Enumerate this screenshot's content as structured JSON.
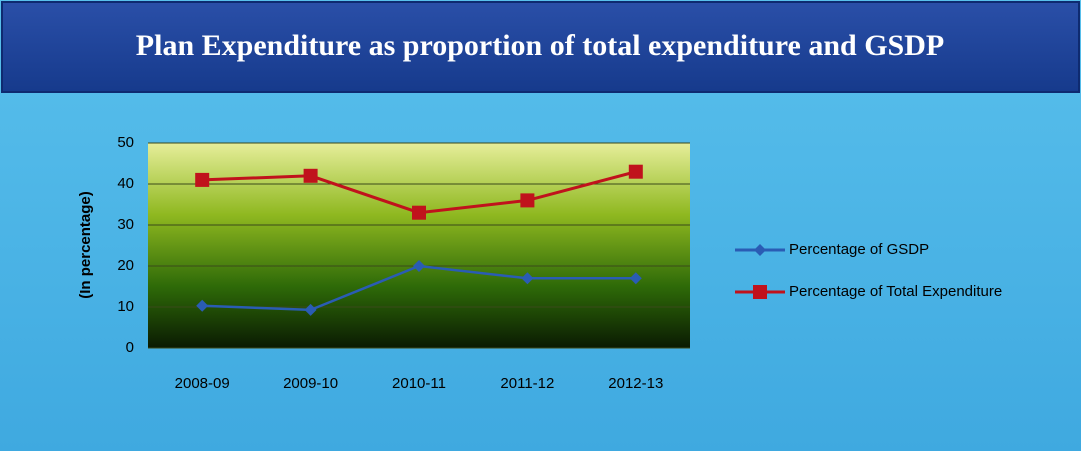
{
  "chart_data": {
    "type": "line",
    "title": "Plan Expenditure as proportion of total expenditure and GSDP",
    "y_label": "(In percentage)",
    "categories": [
      "2008-09",
      "2009-10",
      "2010-11",
      "2011-12",
      "2012-13"
    ],
    "series": [
      {
        "name": "Percentage of GSDP",
        "color": "#2a5cb4",
        "marker": "diamond",
        "values": [
          10.3,
          9.3,
          20,
          17,
          17
        ]
      },
      {
        "name": "Percentage of Total Expenditure",
        "color": "#c0121c",
        "marker": "square",
        "values": [
          41,
          42,
          33,
          36,
          43
        ]
      }
    ],
    "ylim": [
      0,
      50
    ],
    "yticks": [
      0,
      10,
      20,
      30,
      40,
      50
    ],
    "grid": true,
    "legend": "right"
  }
}
